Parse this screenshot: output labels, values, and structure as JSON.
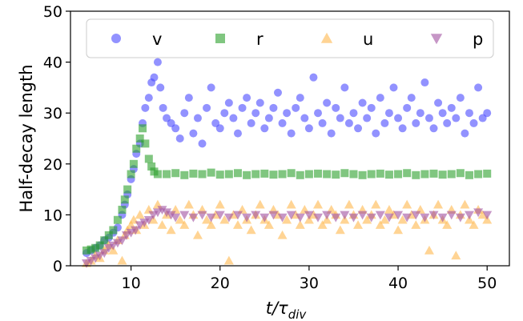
{
  "chart_data": {
    "type": "scatter",
    "title": "",
    "xlabel": "t/τdiv",
    "xlabel_main": "t/τ",
    "xlabel_sub": "div",
    "ylabel": "Half-decay length",
    "xlim": [
      3.2,
      52.5
    ],
    "ylim": [
      0,
      50
    ],
    "xticks": [
      10,
      20,
      30,
      40,
      50
    ],
    "yticks": [
      0,
      10,
      20,
      30,
      40,
      50
    ],
    "grid": false,
    "legend_placement": "top",
    "series": [
      {
        "name": "v",
        "marker": "circle",
        "color": "#4a4aff",
        "points": [
          [
            5.0,
            2.5
          ],
          [
            5.5,
            3.0
          ],
          [
            6.0,
            3.5
          ],
          [
            6.5,
            4.0
          ],
          [
            7.0,
            5.0
          ],
          [
            7.5,
            5.5
          ],
          [
            8.0,
            6.5
          ],
          [
            8.5,
            7.5
          ],
          [
            9.0,
            10.0
          ],
          [
            9.3,
            12.0
          ],
          [
            9.6,
            14.0
          ],
          [
            10.0,
            17.0
          ],
          [
            10.3,
            19.0
          ],
          [
            10.6,
            22.0
          ],
          [
            11.0,
            24.0
          ],
          [
            11.3,
            28.0
          ],
          [
            11.6,
            31.0
          ],
          [
            12.0,
            33.0
          ],
          [
            12.3,
            36.0
          ],
          [
            12.6,
            37.0
          ],
          [
            13.0,
            40.0
          ],
          [
            13.3,
            35.0
          ],
          [
            13.6,
            31.0
          ],
          [
            14.0,
            29.0
          ],
          [
            14.5,
            28.0
          ],
          [
            15.0,
            27.0
          ],
          [
            15.5,
            25.0
          ],
          [
            16.0,
            30.0
          ],
          [
            16.5,
            33.0
          ],
          [
            17.0,
            26.0
          ],
          [
            17.5,
            29.0
          ],
          [
            18.0,
            24.0
          ],
          [
            18.5,
            31.0
          ],
          [
            19.0,
            35.0
          ],
          [
            19.5,
            28.0
          ],
          [
            20.0,
            27.0
          ],
          [
            20.5,
            30.0
          ],
          [
            21.0,
            32.0
          ],
          [
            21.5,
            29.0
          ],
          [
            22.0,
            26.0
          ],
          [
            22.5,
            31.0
          ],
          [
            23.0,
            33.0
          ],
          [
            23.5,
            28.0
          ],
          [
            24.0,
            30.0
          ],
          [
            24.5,
            32.0
          ],
          [
            25.0,
            27.0
          ],
          [
            25.5,
            29.0
          ],
          [
            26.0,
            31.0
          ],
          [
            26.5,
            34.0
          ],
          [
            27.0,
            28.0
          ],
          [
            27.5,
            30.0
          ],
          [
            28.0,
            26.0
          ],
          [
            28.5,
            31.0
          ],
          [
            29.0,
            33.0
          ],
          [
            29.5,
            29.0
          ],
          [
            30.0,
            27.0
          ],
          [
            30.5,
            37.0
          ],
          [
            31.0,
            30.0
          ],
          [
            31.5,
            28.0
          ],
          [
            32.0,
            32.0
          ],
          [
            32.5,
            26.0
          ],
          [
            33.0,
            31.0
          ],
          [
            33.5,
            29.0
          ],
          [
            34.0,
            35.0
          ],
          [
            34.5,
            28.0
          ],
          [
            35.0,
            30.0
          ],
          [
            35.5,
            27.0
          ],
          [
            36.0,
            32.0
          ],
          [
            36.5,
            29.0
          ],
          [
            37.0,
            31.0
          ],
          [
            37.5,
            26.0
          ],
          [
            38.0,
            33.0
          ],
          [
            38.5,
            28.0
          ],
          [
            39.0,
            30.0
          ],
          [
            39.5,
            35.0
          ],
          [
            40.0,
            29.0
          ],
          [
            40.5,
            27.0
          ],
          [
            41.0,
            31.0
          ],
          [
            41.5,
            33.0
          ],
          [
            42.0,
            28.0
          ],
          [
            42.5,
            30.0
          ],
          [
            43.0,
            36.0
          ],
          [
            43.5,
            29.0
          ],
          [
            44.0,
            27.0
          ],
          [
            44.5,
            32.0
          ],
          [
            45.0,
            30.0
          ],
          [
            45.5,
            28.0
          ],
          [
            46.0,
            31.0
          ],
          [
            46.5,
            29.0
          ],
          [
            47.0,
            33.0
          ],
          [
            47.5,
            26.0
          ],
          [
            48.0,
            30.0
          ],
          [
            48.5,
            28.0
          ],
          [
            49.0,
            35.0
          ],
          [
            49.5,
            29.0
          ],
          [
            50.0,
            30.0
          ]
        ]
      },
      {
        "name": "r",
        "marker": "square",
        "color": "#2ca02c",
        "points": [
          [
            5.0,
            3.0
          ],
          [
            5.5,
            3.2
          ],
          [
            6.0,
            3.5
          ],
          [
            6.5,
            4.0
          ],
          [
            7.0,
            5.0
          ],
          [
            7.5,
            6.0
          ],
          [
            8.0,
            7.0
          ],
          [
            8.5,
            9.0
          ],
          [
            9.0,
            11.0
          ],
          [
            9.3,
            13.0
          ],
          [
            9.6,
            15.0
          ],
          [
            10.0,
            18.0
          ],
          [
            10.3,
            20.0
          ],
          [
            10.6,
            23.0
          ],
          [
            11.0,
            25.0
          ],
          [
            11.3,
            27.0
          ],
          [
            11.6,
            24.0
          ],
          [
            12.0,
            21.0
          ],
          [
            12.3,
            19.5
          ],
          [
            12.6,
            18.5
          ],
          [
            13.0,
            18.0
          ],
          [
            14.0,
            18.0
          ],
          [
            15.0,
            18.2
          ],
          [
            16.0,
            17.8
          ],
          [
            17.0,
            18.1
          ],
          [
            18.0,
            18.0
          ],
          [
            19.0,
            18.3
          ],
          [
            20.0,
            17.9
          ],
          [
            21.0,
            18.0
          ],
          [
            22.0,
            18.2
          ],
          [
            23.0,
            17.8
          ],
          [
            24.0,
            18.0
          ],
          [
            25.0,
            18.1
          ],
          [
            26.0,
            17.9
          ],
          [
            27.0,
            18.0
          ],
          [
            28.0,
            18.2
          ],
          [
            29.0,
            17.8
          ],
          [
            30.0,
            18.0
          ],
          [
            31.0,
            18.1
          ],
          [
            32.0,
            18.0
          ],
          [
            33.0,
            17.9
          ],
          [
            34.0,
            18.2
          ],
          [
            35.0,
            18.0
          ],
          [
            36.0,
            17.8
          ],
          [
            37.0,
            18.0
          ],
          [
            38.0,
            18.1
          ],
          [
            39.0,
            17.9
          ],
          [
            40.0,
            18.0
          ],
          [
            41.0,
            18.2
          ],
          [
            42.0,
            17.8
          ],
          [
            43.0,
            18.0
          ],
          [
            44.0,
            18.1
          ],
          [
            45.0,
            17.9
          ],
          [
            46.0,
            18.0
          ],
          [
            47.0,
            18.2
          ],
          [
            48.0,
            17.8
          ],
          [
            49.0,
            18.0
          ],
          [
            50.0,
            18.1
          ]
        ]
      },
      {
        "name": "u",
        "marker": "triangle-up",
        "color": "#ffb84d",
        "points": [
          [
            5.0,
            0.5
          ],
          [
            5.5,
            1.0
          ],
          [
            6.0,
            2.0
          ],
          [
            6.5,
            1.5
          ],
          [
            7.0,
            3.0
          ],
          [
            7.5,
            4.0
          ],
          [
            8.0,
            3.0
          ],
          [
            8.5,
            5.0
          ],
          [
            9.0,
            1.0
          ],
          [
            9.3,
            6.0
          ],
          [
            9.6,
            7.0
          ],
          [
            10.0,
            8.0
          ],
          [
            10.3,
            9.0
          ],
          [
            10.6,
            7.0
          ],
          [
            11.0,
            10.0
          ],
          [
            11.5,
            8.0
          ],
          [
            12.0,
            11.0
          ],
          [
            12.5,
            9.0
          ],
          [
            13.0,
            12.0
          ],
          [
            13.5,
            8.0
          ],
          [
            14.0,
            10.0
          ],
          [
            14.5,
            7.0
          ],
          [
            15.0,
            11.0
          ],
          [
            15.5,
            9.0
          ],
          [
            16.0,
            8.0
          ],
          [
            16.5,
            12.0
          ],
          [
            17.0,
            10.0
          ],
          [
            17.5,
            6.0
          ],
          [
            18.0,
            11.0
          ],
          [
            18.5,
            9.0
          ],
          [
            19.0,
            8.0
          ],
          [
            19.5,
            10.0
          ],
          [
            20.0,
            12.0
          ],
          [
            20.5,
            9.0
          ],
          [
            21.0,
            1.0
          ],
          [
            21.5,
            10.0
          ],
          [
            22.0,
            8.0
          ],
          [
            22.5,
            11.0
          ],
          [
            23.0,
            9.0
          ],
          [
            23.5,
            7.0
          ],
          [
            24.0,
            10.0
          ],
          [
            24.5,
            12.0
          ],
          [
            25.0,
            9.0
          ],
          [
            25.5,
            8.0
          ],
          [
            26.0,
            11.0
          ],
          [
            26.5,
            10.0
          ],
          [
            27.0,
            6.0
          ],
          [
            27.5,
            9.0
          ],
          [
            28.0,
            12.0
          ],
          [
            28.5,
            10.0
          ],
          [
            29.0,
            8.0
          ],
          [
            29.5,
            11.0
          ],
          [
            30.0,
            9.0
          ],
          [
            30.5,
            10.0
          ],
          [
            31.0,
            12.0
          ],
          [
            31.5,
            8.0
          ],
          [
            32.0,
            9.0
          ],
          [
            32.5,
            11.0
          ],
          [
            33.0,
            10.0
          ],
          [
            33.5,
            7.0
          ],
          [
            34.0,
            9.0
          ],
          [
            34.5,
            12.0
          ],
          [
            35.0,
            10.0
          ],
          [
            35.5,
            8.0
          ],
          [
            36.0,
            11.0
          ],
          [
            36.5,
            9.0
          ],
          [
            37.0,
            10.0
          ],
          [
            37.5,
            12.0
          ],
          [
            38.0,
            8.0
          ],
          [
            38.5,
            9.0
          ],
          [
            39.0,
            11.0
          ],
          [
            39.5,
            10.0
          ],
          [
            40.0,
            7.0
          ],
          [
            40.5,
            9.0
          ],
          [
            41.0,
            12.0
          ],
          [
            41.5,
            10.0
          ],
          [
            42.0,
            8.0
          ],
          [
            42.5,
            11.0
          ],
          [
            43.0,
            9.0
          ],
          [
            43.5,
            3.0
          ],
          [
            44.0,
            10.0
          ],
          [
            44.5,
            12.0
          ],
          [
            45.0,
            9.0
          ],
          [
            45.5,
            8.0
          ],
          [
            46.0,
            11.0
          ],
          [
            46.5,
            2.0
          ],
          [
            47.0,
            10.0
          ],
          [
            47.5,
            12.0
          ],
          [
            48.0,
            9.0
          ],
          [
            48.5,
            8.0
          ],
          [
            49.0,
            11.0
          ],
          [
            49.5,
            10.0
          ],
          [
            50.0,
            9.0
          ]
        ]
      },
      {
        "name": "p",
        "marker": "triangle-down",
        "color": "#a050a0",
        "points": [
          [
            5.0,
            0.5
          ],
          [
            5.5,
            1.0
          ],
          [
            6.0,
            1.5
          ],
          [
            6.5,
            2.0
          ],
          [
            7.0,
            2.5
          ],
          [
            7.5,
            3.5
          ],
          [
            8.0,
            4.0
          ],
          [
            8.5,
            4.5
          ],
          [
            9.0,
            5.0
          ],
          [
            9.5,
            6.0
          ],
          [
            10.0,
            6.5
          ],
          [
            10.5,
            7.0
          ],
          [
            11.0,
            8.0
          ],
          [
            11.5,
            8.5
          ],
          [
            12.0,
            9.0
          ],
          [
            12.5,
            10.0
          ],
          [
            13.0,
            10.5
          ],
          [
            13.5,
            11.0
          ],
          [
            14.0,
            10.5
          ],
          [
            14.5,
            10.0
          ],
          [
            15.0,
            9.5
          ],
          [
            16.0,
            10.0
          ],
          [
            17.0,
            9.5
          ],
          [
            18.0,
            10.0
          ],
          [
            19.0,
            9.5
          ],
          [
            20.0,
            10.0
          ],
          [
            21.0,
            9.5
          ],
          [
            22.0,
            10.0
          ],
          [
            23.0,
            9.5
          ],
          [
            24.0,
            10.0
          ],
          [
            25.0,
            9.5
          ],
          [
            26.0,
            10.0
          ],
          [
            27.0,
            9.5
          ],
          [
            28.0,
            10.0
          ],
          [
            29.0,
            9.5
          ],
          [
            30.0,
            10.0
          ],
          [
            31.0,
            9.5
          ],
          [
            32.0,
            10.0
          ],
          [
            33.0,
            9.5
          ],
          [
            34.0,
            10.0
          ],
          [
            35.0,
            9.5
          ],
          [
            36.0,
            10.0
          ],
          [
            37.0,
            9.5
          ],
          [
            38.0,
            10.0
          ],
          [
            39.0,
            9.5
          ],
          [
            40.0,
            10.0
          ],
          [
            41.0,
            9.5
          ],
          [
            42.0,
            10.0
          ],
          [
            43.0,
            9.5
          ],
          [
            44.0,
            10.0
          ],
          [
            45.0,
            9.5
          ],
          [
            46.0,
            10.0
          ],
          [
            47.0,
            9.5
          ],
          [
            48.0,
            10.0
          ],
          [
            49.0,
            10.5
          ],
          [
            50.0,
            10.0
          ]
        ]
      }
    ]
  }
}
